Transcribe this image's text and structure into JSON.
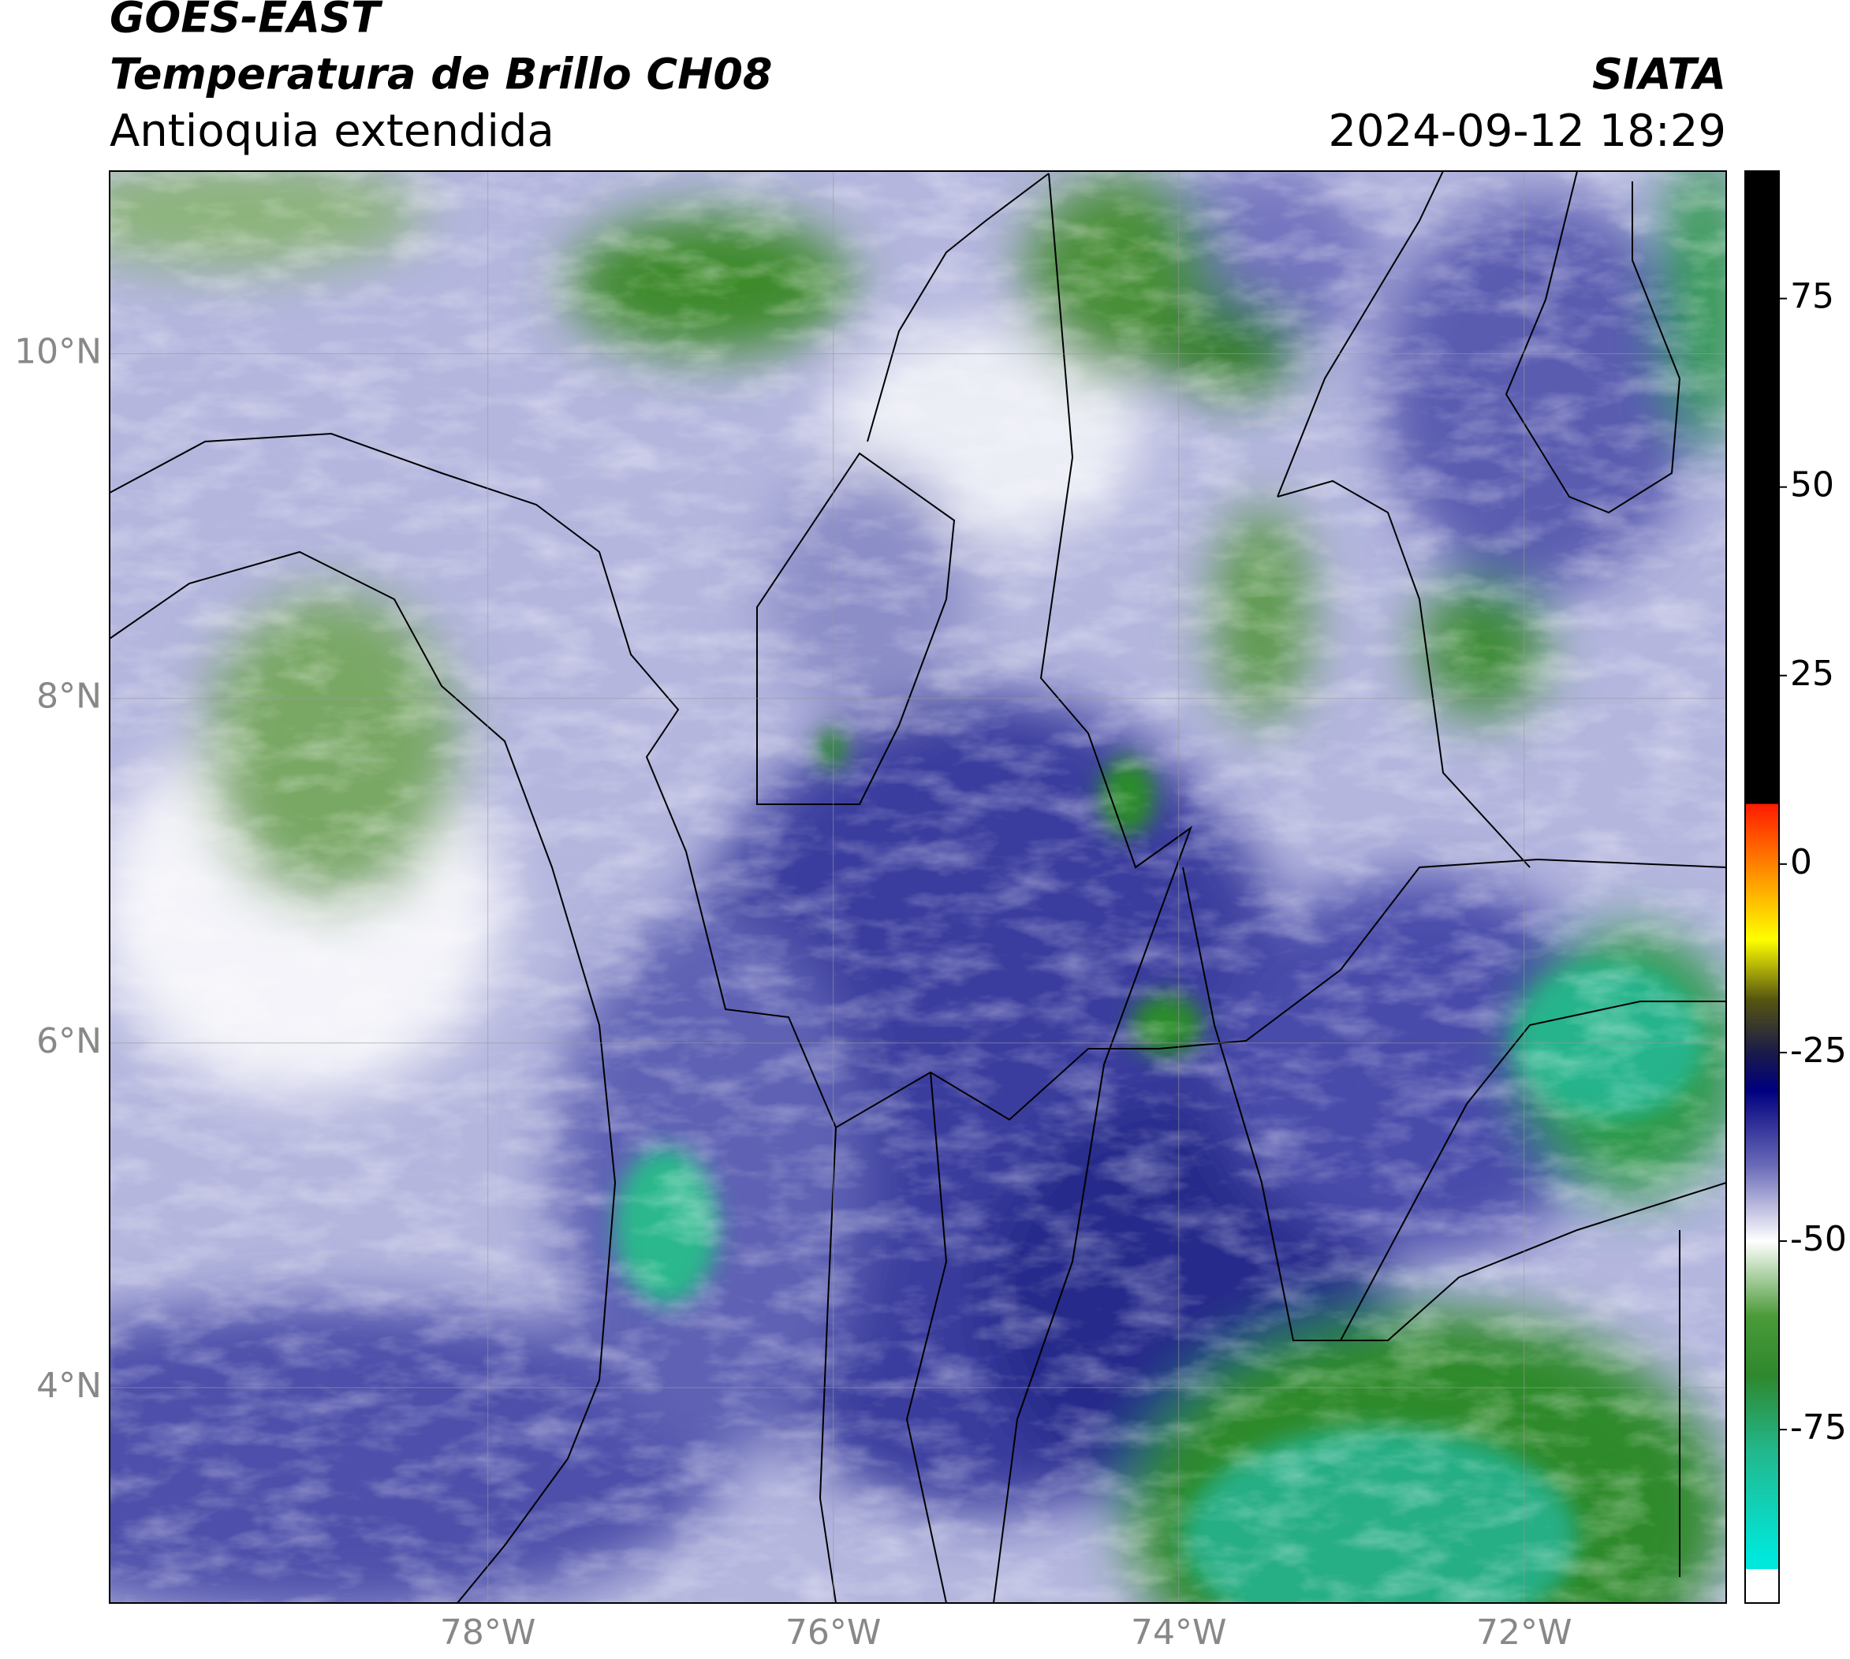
{
  "chart_data": {
    "type": "map",
    "title": "GOES-EAST",
    "subtitle": "Temperatura de Brillo CH08",
    "region": "Antioquia extendida",
    "source": "SIATA",
    "datetime": "2024-09-12 18:29",
    "xlim": [
      -80.19,
      -70.83
    ],
    "ylim": [
      2.75,
      11.06
    ],
    "xticks": [
      {
        "value": -78,
        "label": "78°W"
      },
      {
        "value": -76,
        "label": "76°W"
      },
      {
        "value": -74,
        "label": "74°W"
      },
      {
        "value": -72,
        "label": "72°W"
      }
    ],
    "yticks": [
      {
        "value": 4,
        "label": "4°N"
      },
      {
        "value": 6,
        "label": "6°N"
      },
      {
        "value": 8,
        "label": "8°N"
      },
      {
        "value": 10,
        "label": "10°N"
      }
    ],
    "grid": true,
    "colorbar": {
      "lim": [
        -98,
        91.9
      ],
      "ticks": [
        -75,
        -50,
        -25,
        0,
        25,
        50,
        75
      ],
      "colormap": [
        {
          "value": 91.9,
          "color": "#000000"
        },
        {
          "value": 8,
          "color": "#000000"
        },
        {
          "value": 8,
          "color": "#ff1a00"
        },
        {
          "value": 0,
          "color": "#ff8000"
        },
        {
          "value": -10,
          "color": "#ffff00"
        },
        {
          "value": -18,
          "color": "#555510"
        },
        {
          "value": -25,
          "color": "#1a1a4a"
        },
        {
          "value": -30,
          "color": "#00007f"
        },
        {
          "value": -40,
          "color": "#6a6ab8"
        },
        {
          "value": -50,
          "color": "#ffffff"
        },
        {
          "value": -60,
          "color": "#4a9a38"
        },
        {
          "value": -68,
          "color": "#2e882e"
        },
        {
          "value": -78,
          "color": "#22b88e"
        },
        {
          "value": -92,
          "color": "#00e8dc"
        },
        {
          "value": -93.5,
          "color": "#00e8dc"
        },
        {
          "value": -93.5,
          "color": "#ffffff"
        },
        {
          "value": -98,
          "color": "#ffffff"
        }
      ]
    }
  }
}
